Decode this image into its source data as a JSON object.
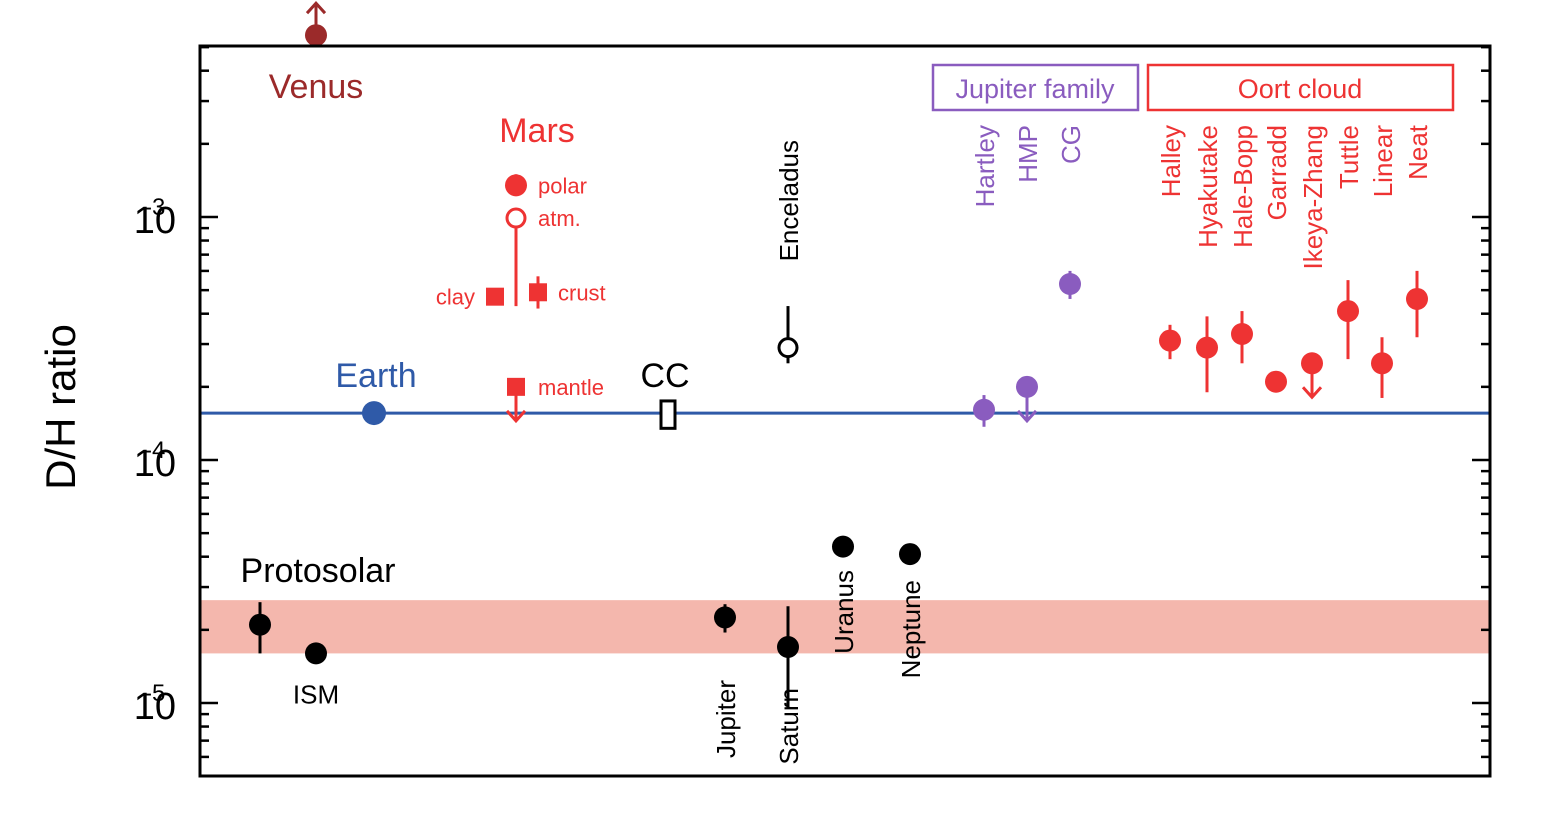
{
  "chart_data": {
    "type": "scatter",
    "y_scale": "log",
    "ylim": [
      5e-06,
      0.006
    ],
    "ylabel": "D/H ratio",
    "y_ticks": [
      {
        "value": 0.001,
        "base": "10",
        "exp": "-3"
      },
      {
        "value": 0.0001,
        "base": "10",
        "exp": "-4"
      },
      {
        "value": 1e-05,
        "base": "10",
        "exp": "-5"
      }
    ],
    "colors": {
      "black": "#000000",
      "earth": "#2f5aa8",
      "mars": "#ee3333",
      "venus": "#9b2a2a",
      "jupiter_family": "#8a5cbf",
      "oort": "#ee3333",
      "protosolar_band": "#f4b7ad"
    },
    "earth_line": {
      "value": 0.000156
    },
    "protosolar_band": {
      "lower": 1.6e-05,
      "upper": 2.65e-05,
      "label": "Protosolar"
    },
    "group_labels": {
      "venus": "Venus",
      "mars": "Mars",
      "earth": "Earth",
      "cc": "CC",
      "jupiter_family": "Jupiter family",
      "oort_cloud": "Oort cloud"
    },
    "points": [
      {
        "label": "Venus",
        "y": 0.0056,
        "group": "venus",
        "marker": "circle",
        "limit": "lower"
      },
      {
        "label": "polar",
        "y": 0.00135,
        "err_lo": 0.00122,
        "err_hi": 0.0015,
        "group": "mars",
        "marker": "circle"
      },
      {
        "label": "atm.",
        "y": 0.00099,
        "err_lo": 0.00043,
        "err_hi": 0.00099,
        "group": "mars",
        "marker": "open-circle"
      },
      {
        "label": "clay",
        "y": 0.00047,
        "group": "mars",
        "marker": "square"
      },
      {
        "label": "crust",
        "y": 0.00049,
        "err_lo": 0.00042,
        "err_hi": 0.00057,
        "group": "mars",
        "marker": "square"
      },
      {
        "label": "mantle",
        "y": 0.0002,
        "group": "mars",
        "marker": "square",
        "limit": "upper"
      },
      {
        "label": "Earth",
        "y": 0.000156,
        "group": "earth",
        "marker": "circle-large"
      },
      {
        "label": "CC",
        "y": 0.000155,
        "err_lo": 0.000135,
        "err_hi": 0.000175,
        "group": "cc",
        "marker": "open-rect"
      },
      {
        "label": "Enceladus",
        "y": 0.00029,
        "err_lo": 0.00025,
        "err_hi": 0.00043,
        "group": "other",
        "marker": "open-circle"
      },
      {
        "label": "Hartley",
        "y": 0.000161,
        "err_lo": 0.000137,
        "err_hi": 0.000185,
        "group": "jupiter_family",
        "marker": "circle"
      },
      {
        "label": "HMP",
        "y": 0.0002,
        "group": "jupiter_family",
        "marker": "circle",
        "limit": "upper"
      },
      {
        "label": "CG",
        "y": 0.00053,
        "err_lo": 0.00046,
        "err_hi": 0.0006,
        "group": "jupiter_family",
        "marker": "circle"
      },
      {
        "label": "Halley",
        "y": 0.00031,
        "err_lo": 0.00026,
        "err_hi": 0.00036,
        "group": "oort",
        "marker": "circle"
      },
      {
        "label": "Hyakutake",
        "y": 0.00029,
        "err_lo": 0.00019,
        "err_hi": 0.00039,
        "group": "oort",
        "marker": "circle"
      },
      {
        "label": "Hale-Bopp",
        "y": 0.00033,
        "err_lo": 0.00025,
        "err_hi": 0.00041,
        "group": "oort",
        "marker": "circle"
      },
      {
        "label": "Garradd",
        "y": 0.00021,
        "err_lo": 0.00019,
        "err_hi": 0.00023,
        "group": "oort",
        "marker": "circle"
      },
      {
        "label": "Ikeya-Zhang",
        "y": 0.00025,
        "group": "oort",
        "marker": "circle",
        "limit": "upper"
      },
      {
        "label": "Tuttle",
        "y": 0.00041,
        "err_lo": 0.00026,
        "err_hi": 0.00055,
        "group": "oort",
        "marker": "circle"
      },
      {
        "label": "Linear",
        "y": 0.00025,
        "err_lo": 0.00018,
        "err_hi": 0.00032,
        "group": "oort",
        "marker": "circle"
      },
      {
        "label": "Neat",
        "y": 0.00046,
        "err_lo": 0.00032,
        "err_hi": 0.0006,
        "group": "oort",
        "marker": "circle"
      },
      {
        "label": "Jupiter",
        "y": 2.25e-05,
        "err_lo": 1.95e-05,
        "err_hi": 2.55e-05,
        "group": "giant",
        "marker": "circle"
      },
      {
        "label": "Saturn",
        "y": 1.7e-05,
        "err_lo": 9.5e-06,
        "err_hi": 2.5e-05,
        "group": "giant",
        "marker": "circle"
      },
      {
        "label": "Uranus",
        "y": 4.4e-05,
        "group": "giant",
        "marker": "circle"
      },
      {
        "label": "Neptune",
        "y": 4.1e-05,
        "group": "giant",
        "marker": "circle"
      },
      {
        "label": "",
        "y": 2.1e-05,
        "err_lo": 1.6e-05,
        "err_hi": 2.6e-05,
        "group": "protosolar",
        "marker": "circle"
      },
      {
        "label": "ISM",
        "y": 1.6e-05,
        "group": "protosolar",
        "marker": "circle"
      }
    ]
  }
}
